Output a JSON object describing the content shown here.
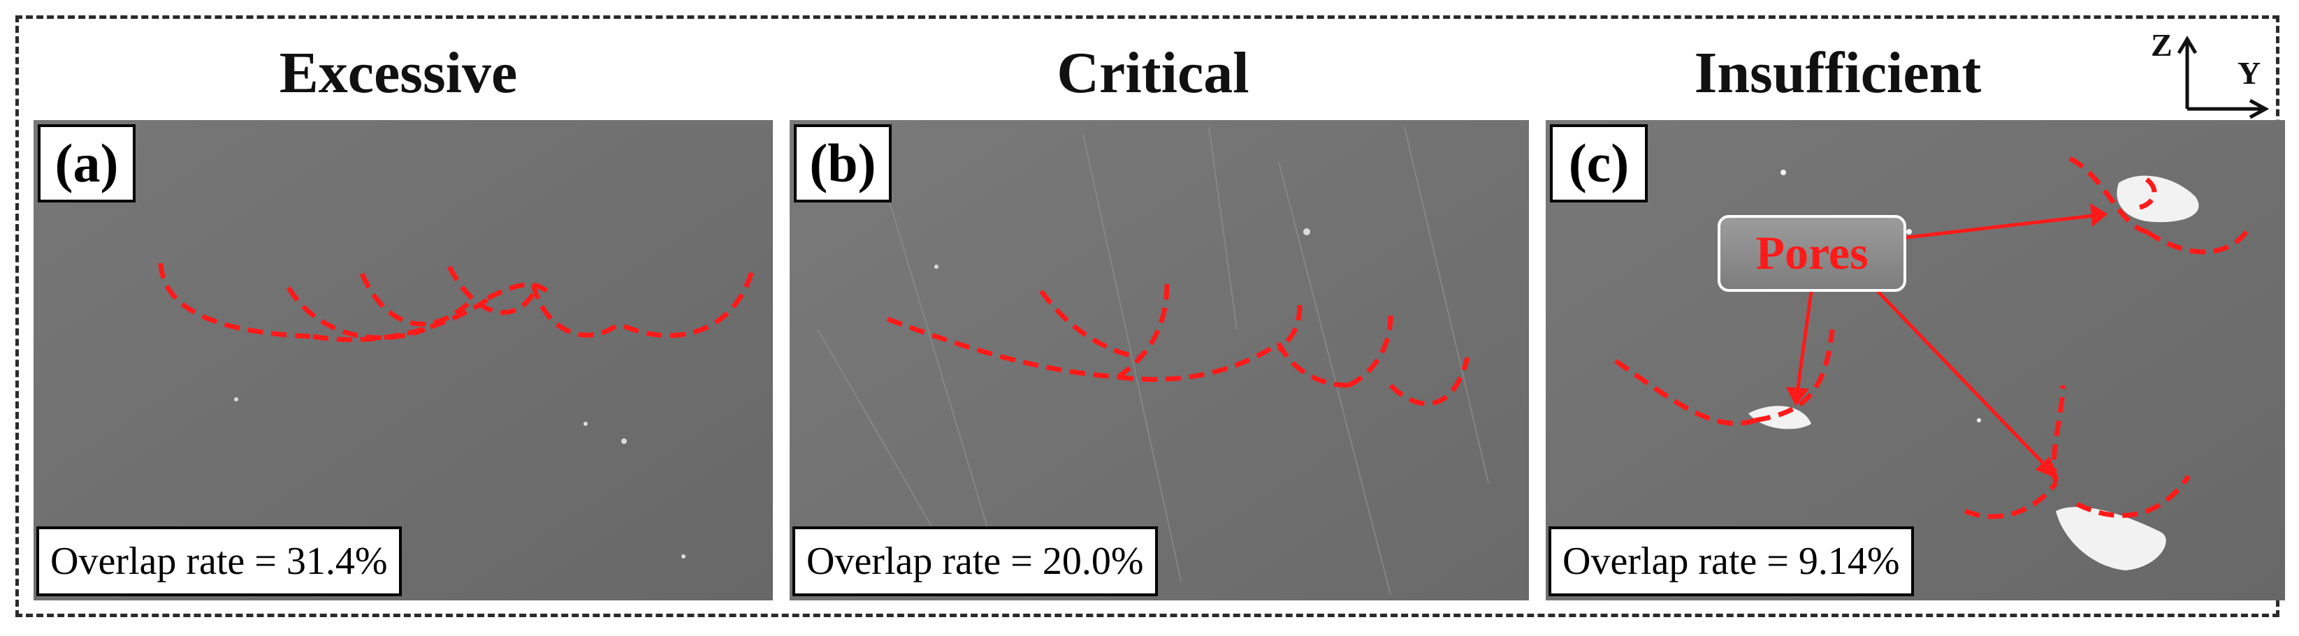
{
  "titles": {
    "excessive": "Excessive",
    "critical": "Critical",
    "insufficient": "Insufficient"
  },
  "panels": [
    {
      "label": "(a)",
      "rate_text": "Overlap rate = 31.4%",
      "overlap_rate_percent": 31.4
    },
    {
      "label": "(b)",
      "rate_text": "Overlap rate = 20.0%",
      "overlap_rate_percent": 20.0
    },
    {
      "label": "(c)",
      "rate_text": "Overlap rate = 9.14%",
      "overlap_rate_percent": 9.14
    }
  ],
  "annotation": {
    "pores_label": "Pores"
  },
  "axes": {
    "vertical": "Z",
    "horizontal": "Y"
  },
  "colors": {
    "boundary_dashes": "#ff1a1a",
    "pore": "#f2f2f2",
    "background": "#6f6f6f"
  }
}
